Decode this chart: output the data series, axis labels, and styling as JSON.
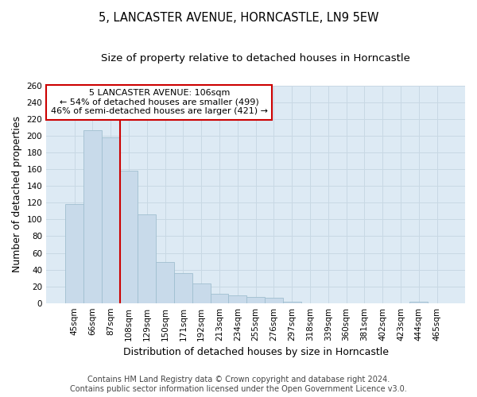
{
  "title": "5, LANCASTER AVENUE, HORNCASTLE, LN9 5EW",
  "subtitle": "Size of property relative to detached houses in Horncastle",
  "xlabel": "Distribution of detached houses by size in Horncastle",
  "ylabel": "Number of detached properties",
  "categories": [
    "45sqm",
    "66sqm",
    "87sqm",
    "108sqm",
    "129sqm",
    "150sqm",
    "171sqm",
    "192sqm",
    "213sqm",
    "234sqm",
    "255sqm",
    "276sqm",
    "297sqm",
    "318sqm",
    "339sqm",
    "360sqm",
    "381sqm",
    "402sqm",
    "423sqm",
    "444sqm",
    "465sqm"
  ],
  "values": [
    118,
    207,
    198,
    158,
    106,
    49,
    36,
    23,
    11,
    9,
    7,
    6,
    2,
    0,
    0,
    0,
    0,
    0,
    0,
    2,
    0
  ],
  "bar_color": "#c8daea",
  "bar_edgecolor": "#a0bfd0",
  "red_line_index": 2,
  "ylim": [
    0,
    260
  ],
  "yticks": [
    0,
    20,
    40,
    60,
    80,
    100,
    120,
    140,
    160,
    180,
    200,
    220,
    240,
    260
  ],
  "annotation_line1": "5 LANCASTER AVENUE: 106sqm",
  "annotation_line2": "← 54% of detached houses are smaller (499)",
  "annotation_line3": "46% of semi-detached houses are larger (421) →",
  "annotation_box_color": "#ffffff",
  "annotation_box_edgecolor": "#cc0000",
  "footer_line1": "Contains HM Land Registry data © Crown copyright and database right 2024.",
  "footer_line2": "Contains public sector information licensed under the Open Government Licence v3.0.",
  "grid_color": "#c8d8e4",
  "background_color": "#ddeaf4",
  "title_fontsize": 10.5,
  "subtitle_fontsize": 9.5,
  "axis_label_fontsize": 9,
  "tick_fontsize": 7.5,
  "annotation_fontsize": 8,
  "footer_fontsize": 7
}
